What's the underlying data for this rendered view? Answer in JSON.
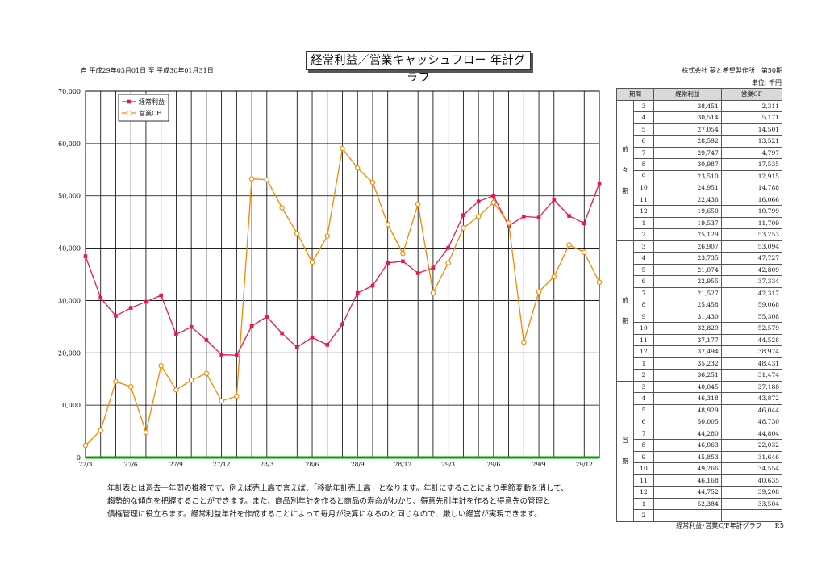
{
  "header": {
    "title": "経常利益／営業キャッシュフロー 年計グラフ",
    "period": "自 平成29年03月01日 至 平成30年01月31日",
    "company": "株式会社 夢と希望製作所　第50期",
    "unit": "単位: 千円"
  },
  "chart_data": {
    "type": "line",
    "title": "",
    "xlabel": "",
    "ylabel": "",
    "ylim": [
      0,
      70000
    ],
    "yticks": [
      "0",
      "10,000",
      "20,000",
      "30,000",
      "40,000",
      "50,000",
      "60,000",
      "70,000"
    ],
    "x": [
      "27/3",
      "27/4",
      "27/5",
      "27/6",
      "27/7",
      "27/8",
      "27/9",
      "27/10",
      "27/11",
      "27/12",
      "28/1",
      "28/2",
      "28/3",
      "28/4",
      "28/5",
      "28/6",
      "28/7",
      "28/8",
      "28/9",
      "28/10",
      "28/11",
      "28/12",
      "29/1",
      "29/2",
      "29/3",
      "29/4",
      "29/5",
      "29/6",
      "29/7",
      "29/8",
      "29/9",
      "29/10",
      "29/11",
      "29/12",
      "30/1"
    ],
    "xtick_labels": [
      "27/3",
      "",
      "",
      "27/6",
      "",
      "",
      "27/9",
      "",
      "",
      "27/12",
      "",
      "",
      "28/3",
      "",
      "",
      "28/6",
      "",
      "",
      "28/9",
      "",
      "",
      "28/12",
      "",
      "",
      "29/3",
      "",
      "",
      "29/6",
      "",
      "",
      "29/9",
      "",
      "",
      "29/12",
      ""
    ],
    "grid": true,
    "legend_position": "top-left",
    "series": [
      {
        "name": "経常利益",
        "color": "#e8174e",
        "marker": "square",
        "values": [
          38451,
          30514,
          27054,
          28592,
          29747,
          30987,
          23510,
          24951,
          22436,
          19650,
          19537,
          25129,
          26907,
          23735,
          21074,
          22955,
          21527,
          25458,
          31430,
          32829,
          37177,
          37494,
          35232,
          36251,
          40045,
          46318,
          48929,
          50005,
          44280,
          46063,
          45853,
          49266,
          46168,
          44752,
          52384
        ]
      },
      {
        "name": "営業CF",
        "color": "#f08a00",
        "marker": "circle",
        "values": [
          2311,
          5171,
          14501,
          13521,
          4797,
          17535,
          12915,
          14788,
          16066,
          10799,
          11709,
          53253,
          53094,
          47727,
          42809,
          37334,
          42317,
          59068,
          55308,
          52579,
          44528,
          38974,
          48431,
          31474,
          37188,
          43872,
          46044,
          48730,
          44804,
          22032,
          31646,
          34554,
          40635,
          39208,
          33504
        ]
      }
    ]
  },
  "table": {
    "headers": [
      "期間",
      "経常利益",
      "営業CF"
    ],
    "groups": [
      {
        "label": [
          "前",
          "々",
          "期"
        ],
        "rows": [
          [
            "3",
            "38,451",
            "2,311"
          ],
          [
            "4",
            "30,514",
            "5,171"
          ],
          [
            "5",
            "27,054",
            "14,501"
          ],
          [
            "6",
            "28,592",
            "13,521"
          ],
          [
            "7",
            "29,747",
            "4,797"
          ],
          [
            "8",
            "30,987",
            "17,535"
          ],
          [
            "9",
            "23,510",
            "12,915"
          ],
          [
            "10",
            "24,951",
            "14,788"
          ],
          [
            "11",
            "22,436",
            "16,066"
          ],
          [
            "12",
            "19,650",
            "10,799"
          ],
          [
            "1",
            "19,537",
            "11,709"
          ],
          [
            "2",
            "25,129",
            "53,253"
          ]
        ]
      },
      {
        "label": [
          "前",
          "期"
        ],
        "rows": [
          [
            "3",
            "26,907",
            "53,094"
          ],
          [
            "4",
            "23,735",
            "47,727"
          ],
          [
            "5",
            "21,074",
            "42,809"
          ],
          [
            "6",
            "22,955",
            "37,334"
          ],
          [
            "7",
            "21,527",
            "42,317"
          ],
          [
            "8",
            "25,458",
            "59,068"
          ],
          [
            "9",
            "31,430",
            "55,308"
          ],
          [
            "10",
            "32,829",
            "52,579"
          ],
          [
            "11",
            "37,177",
            "44,528"
          ],
          [
            "12",
            "37,494",
            "38,974"
          ],
          [
            "1",
            "35,232",
            "48,431"
          ],
          [
            "2",
            "36,251",
            "31,474"
          ]
        ]
      },
      {
        "label": [
          "当",
          "期"
        ],
        "rows": [
          [
            "3",
            "40,045",
            "37,188"
          ],
          [
            "4",
            "46,318",
            "43,872"
          ],
          [
            "5",
            "48,929",
            "46,044"
          ],
          [
            "6",
            "50,005",
            "48,730"
          ],
          [
            "7",
            "44,280",
            "44,804"
          ],
          [
            "8",
            "46,063",
            "22,032"
          ],
          [
            "9",
            "45,853",
            "31,646"
          ],
          [
            "10",
            "49,266",
            "34,554"
          ],
          [
            "11",
            "46,168",
            "40,635"
          ],
          [
            "12",
            "44,752",
            "39,208"
          ],
          [
            "1",
            "52,384",
            "33,504"
          ],
          [
            "2",
            "",
            ""
          ]
        ]
      }
    ]
  },
  "description": [
    "年計表とは過去一年間の推移です。例えば売上高で言えば、「移動年計売上高」となります。年計にすることにより季節変動を消して、",
    "趨勢的な傾向を把握することができます。また、商品別年計を作ると商品の寿命がわかり、得意先別年計を作ると得意先の管理と",
    "債権管理に役立ちます。経常利益年計を作成することによって毎月が決算になるのと同じなので、厳しい経営が実現できます。"
  ],
  "footer": "経常利益･営業C/F年計グラフ　　P.5",
  "colors": {
    "recurring_profit": "#e8174e",
    "operating_cf": "#f08a00",
    "baseline": "#00a000"
  }
}
